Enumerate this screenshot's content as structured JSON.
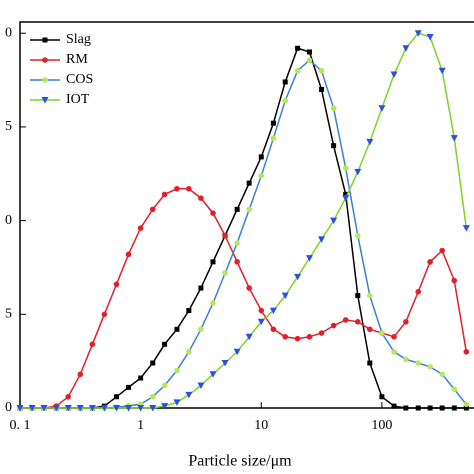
{
  "chart_data": {
    "type": "line",
    "xlabel": "Particle size/μm",
    "log_x": true,
    "x": [
      0.1,
      0.126,
      0.158,
      0.2,
      0.251,
      0.316,
      0.398,
      0.501,
      0.631,
      0.794,
      1,
      1.26,
      1.58,
      2,
      2.51,
      3.16,
      3.98,
      5.01,
      6.31,
      7.94,
      10,
      12.6,
      15.8,
      20,
      25.1,
      31.6,
      39.8,
      50.1,
      63.1,
      79.4,
      100,
      126,
      158,
      200,
      251,
      316,
      398,
      501
    ],
    "xlim": [
      0.1,
      580
    ],
    "xticks": [
      {
        "value": 0.1,
        "label": "0. 1"
      },
      1,
      10,
      100
    ],
    "ylim": [
      0,
      10.3
    ],
    "yticks": [
      0,
      {
        "value": 2.5,
        "label": "5"
      },
      {
        "value": 5,
        "label": "0"
      },
      {
        "value": 7.5,
        "label": "5"
      },
      {
        "value": 10,
        "label": "0"
      }
    ],
    "legend": "upper left",
    "series": [
      {
        "name": "Slag",
        "color": "#000000",
        "marker": "square",
        "marker_color": "#000000",
        "values": [
          0,
          0,
          0,
          0,
          0,
          0,
          0,
          0.05,
          0.3,
          0.55,
          0.8,
          1.2,
          1.7,
          2.1,
          2.6,
          3.2,
          3.9,
          4.6,
          5.3,
          6.0,
          6.7,
          7.6,
          8.7,
          9.6,
          9.5,
          8.5,
          7.0,
          5.7,
          3.0,
          1.2,
          0.3,
          0.05,
          0,
          0,
          0,
          0,
          0,
          0
        ]
      },
      {
        "name": "RM",
        "color": "#e0202a",
        "marker": "circle",
        "marker_color": "#e0202a",
        "values": [
          0,
          0,
          0,
          0.05,
          0.3,
          0.9,
          1.7,
          2.5,
          3.3,
          4.1,
          4.8,
          5.3,
          5.7,
          5.85,
          5.85,
          5.6,
          5.2,
          4.6,
          3.9,
          3.2,
          2.6,
          2.1,
          1.9,
          1.85,
          1.9,
          2.0,
          2.2,
          2.35,
          2.3,
          2.1,
          2.0,
          1.9,
          2.3,
          3.1,
          3.9,
          4.2,
          3.4,
          1.5
        ]
      },
      {
        "name": "COS",
        "color": "#3a7fd5",
        "marker": "circle",
        "marker_color": "#b8e65a",
        "values": [
          0,
          0,
          0,
          0,
          0,
          0,
          0,
          0,
          0.02,
          0.06,
          0.1,
          0.3,
          0.6,
          1.0,
          1.5,
          2.1,
          2.8,
          3.6,
          4.4,
          5.3,
          6.2,
          7.2,
          8.2,
          9.0,
          9.28,
          9.0,
          8.0,
          6.4,
          4.6,
          3.0,
          2.0,
          1.5,
          1.3,
          1.2,
          1.1,
          0.9,
          0.5,
          0.1
        ]
      },
      {
        "name": "IOT",
        "color": "#7ed321",
        "marker": "triangle-down",
        "marker_color": "#2a4fe6",
        "values": [
          0,
          0,
          0,
          0,
          0,
          0,
          0,
          0,
          0,
          0,
          0,
          0,
          0.05,
          0.15,
          0.35,
          0.6,
          0.9,
          1.2,
          1.5,
          1.9,
          2.3,
          2.6,
          3.0,
          3.5,
          4.0,
          4.5,
          5.0,
          5.6,
          6.3,
          7.1,
          8.0,
          8.9,
          9.6,
          10.0,
          9.9,
          9.0,
          7.2,
          4.8
        ]
      }
    ]
  }
}
